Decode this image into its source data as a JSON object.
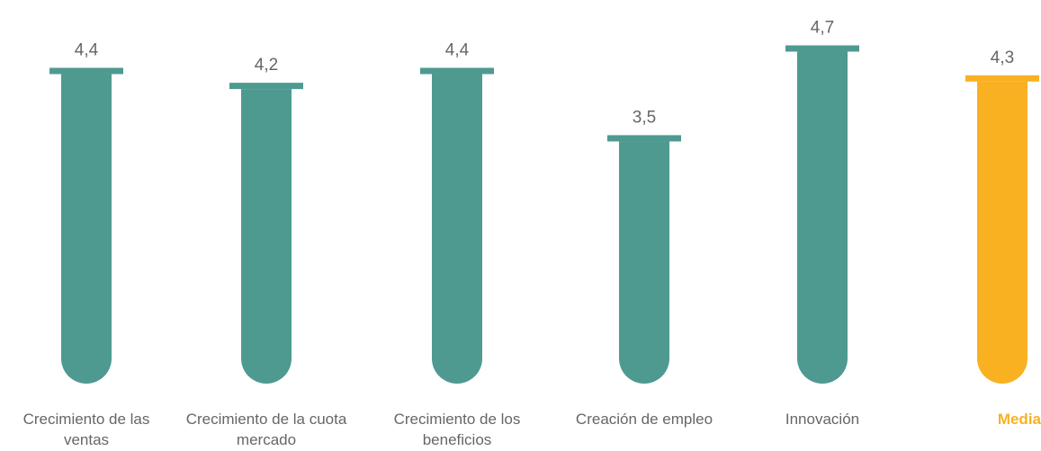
{
  "chart_data": {
    "type": "bar",
    "categories": [
      "Crecimiento de las ventas",
      "Crecimiento de la cuota mercado",
      "Crecimiento de los beneficios",
      "Creación de empleo",
      "Innovación",
      "Media"
    ],
    "values": [
      4.4,
      4.2,
      4.4,
      3.5,
      4.7,
      4.3
    ],
    "value_labels": [
      "4,4",
      "4,2",
      "4,4",
      "3,5",
      "4,7",
      "4,3"
    ],
    "colors": [
      "#4e9a91",
      "#4e9a91",
      "#4e9a91",
      "#4e9a91",
      "#4e9a91",
      "#f9b122"
    ],
    "label_colors": [
      "#666666",
      "#666666",
      "#666666",
      "#666666",
      "#666666",
      "#f9b122"
    ]
  }
}
